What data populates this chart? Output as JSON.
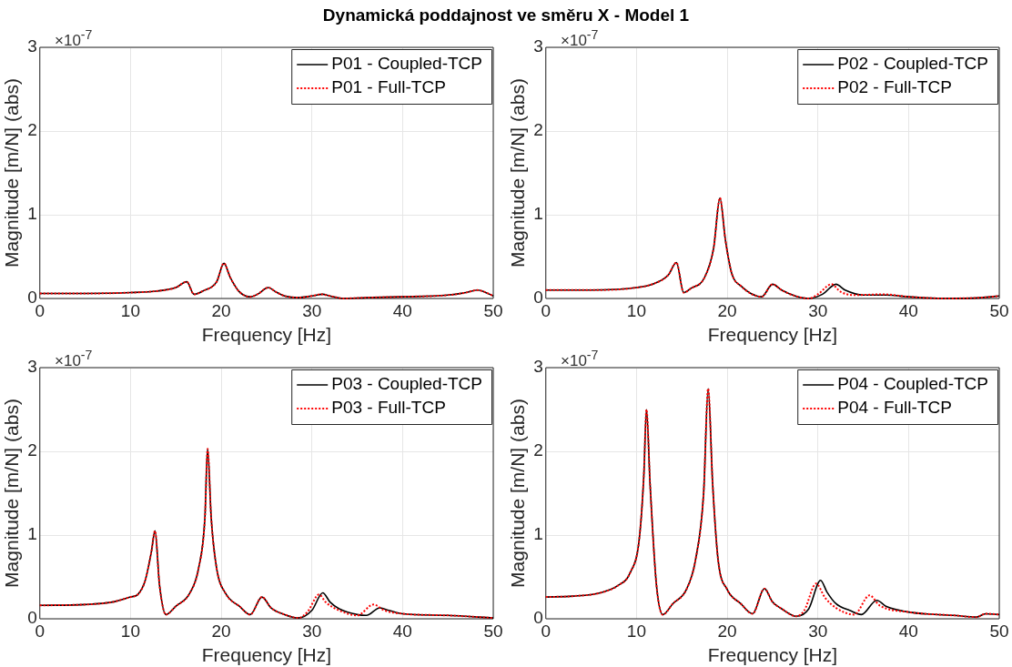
{
  "chart_data": [
    {
      "type": "line",
      "title": "Dynamická poddajnost ve směru X - Model 1",
      "xlabel": "Frequency [Hz]",
      "ylabel": "Magnitude [m/N] (abs)",
      "annotations": [
        "×10$^{-7}$"
      ],
      "xlim": [
        0,
        50
      ],
      "xticks": [
        0,
        10,
        20,
        30,
        40,
        50
      ],
      "ylim": [
        0,
        3
      ],
      "yticks": [
        0,
        1,
        2,
        3
      ],
      "grid": true,
      "legend": "top right",
      "series": [
        {
          "name": "P01 - Coupled-TCP",
          "color": "#000000",
          "line_style": "solid",
          "x": [
            0,
            5,
            10,
            13,
            15,
            16.2,
            17,
            18,
            19.5,
            20.3,
            21,
            22,
            23.2,
            24,
            25.2,
            26,
            27,
            28.5,
            30,
            31.2,
            32,
            33.5,
            36,
            40,
            45,
            47,
            48.3,
            49,
            50
          ],
          "values": [
            0.06,
            0.06,
            0.07,
            0.09,
            0.13,
            0.2,
            0.05,
            0.09,
            0.2,
            0.42,
            0.25,
            0.08,
            0.02,
            0.05,
            0.13,
            0.08,
            0.03,
            0.01,
            0.03,
            0.05,
            0.03,
            0.0,
            0.01,
            0.02,
            0.04,
            0.07,
            0.1,
            0.08,
            0.03
          ]
        },
        {
          "name": "P01 - Full-TCP",
          "color": "#ff0000",
          "line_style": "dotted",
          "x": [
            0,
            5,
            10,
            13,
            15,
            16.2,
            17,
            18,
            19.5,
            20.3,
            21,
            22,
            23.2,
            24,
            25.2,
            26,
            27,
            28.5,
            30,
            31,
            32,
            33.5,
            36,
            40,
            45,
            47,
            48.2,
            49,
            50
          ],
          "values": [
            0.06,
            0.06,
            0.07,
            0.09,
            0.13,
            0.2,
            0.05,
            0.09,
            0.2,
            0.42,
            0.25,
            0.08,
            0.02,
            0.05,
            0.13,
            0.08,
            0.03,
            0.01,
            0.03,
            0.05,
            0.03,
            0.0,
            0.01,
            0.02,
            0.04,
            0.07,
            0.1,
            0.08,
            0.03
          ]
        }
      ]
    },
    {
      "type": "line",
      "xlabel": "Frequency [Hz]",
      "ylabel": "Magnitude [m/N] (abs)",
      "annotations": [
        "×10$^{-7}$"
      ],
      "xlim": [
        0,
        50
      ],
      "xticks": [
        0,
        10,
        20,
        30,
        40,
        50
      ],
      "ylim": [
        0,
        3
      ],
      "yticks": [
        0,
        1,
        2,
        3
      ],
      "grid": true,
      "legend": "top right",
      "series": [
        {
          "name": "P02 - Coupled-TCP",
          "color": "#000000",
          "line_style": "solid",
          "x": [
            0,
            5,
            10,
            12,
            13.5,
            14.4,
            15.2,
            16,
            17.5,
            18.5,
            19.2,
            19.8,
            20.5,
            21.5,
            23.8,
            25,
            26,
            27.5,
            29,
            30.5,
            32,
            33,
            35,
            37.5,
            40,
            44,
            48,
            50
          ],
          "values": [
            0.1,
            0.1,
            0.13,
            0.18,
            0.28,
            0.43,
            0.07,
            0.12,
            0.25,
            0.6,
            1.2,
            0.7,
            0.3,
            0.15,
            0.02,
            0.17,
            0.1,
            0.03,
            0.0,
            0.05,
            0.17,
            0.1,
            0.04,
            0.04,
            0.02,
            0.0,
            0.01,
            0.03
          ]
        },
        {
          "name": "P02 - Full-TCP",
          "color": "#ff0000",
          "line_style": "dotted",
          "x": [
            0,
            5,
            10,
            12,
            13.5,
            14.4,
            15.2,
            16,
            17.5,
            18.5,
            19.2,
            19.8,
            20.5,
            21.5,
            23.8,
            25,
            26,
            27.5,
            29,
            30,
            31.5,
            32.5,
            34,
            37.2,
            40,
            44,
            48,
            50
          ],
          "values": [
            0.1,
            0.1,
            0.13,
            0.18,
            0.28,
            0.43,
            0.07,
            0.12,
            0.25,
            0.6,
            1.2,
            0.7,
            0.3,
            0.15,
            0.02,
            0.17,
            0.1,
            0.03,
            0.0,
            0.05,
            0.17,
            0.08,
            0.04,
            0.05,
            0.02,
            0.0,
            0.01,
            0.03
          ]
        }
      ]
    },
    {
      "type": "line",
      "xlabel": "Frequency [Hz]",
      "ylabel": "Magnitude [m/N] (abs)",
      "annotations": [
        "×10$^{-7}$"
      ],
      "xlim": [
        0,
        50
      ],
      "xticks": [
        0,
        10,
        20,
        30,
        40,
        50
      ],
      "ylim": [
        0,
        3
      ],
      "yticks": [
        0,
        1,
        2,
        3
      ],
      "grid": true,
      "legend": "top right",
      "series": [
        {
          "name": "P03 - Coupled-TCP",
          "color": "#000000",
          "line_style": "solid",
          "x": [
            0,
            5,
            8,
            10,
            10.8,
            11.6,
            12.3,
            12.7,
            13.2,
            13.9,
            15,
            16.5,
            17.5,
            18.2,
            18.5,
            18.9,
            19.5,
            20.5,
            22,
            23.2,
            24.5,
            25.5,
            27,
            28.5,
            30,
            31.2,
            32,
            33,
            35,
            36,
            37.5,
            38.5,
            40,
            45,
            50
          ],
          "values": [
            0.16,
            0.17,
            0.2,
            0.26,
            0.29,
            0.45,
            0.8,
            1.05,
            0.4,
            0.05,
            0.15,
            0.3,
            0.6,
            1.2,
            2.03,
            1.2,
            0.6,
            0.3,
            0.15,
            0.05,
            0.26,
            0.13,
            0.05,
            0.01,
            0.1,
            0.31,
            0.2,
            0.12,
            0.05,
            0.04,
            0.13,
            0.1,
            0.06,
            0.04,
            0.01
          ]
        },
        {
          "name": "P03 - Full-TCP",
          "color": "#ff0000",
          "line_style": "dotted",
          "x": [
            0,
            5,
            8,
            10,
            10.8,
            11.6,
            12.3,
            12.7,
            13.2,
            13.9,
            15,
            16.5,
            17.5,
            18.2,
            18.5,
            18.9,
            19.5,
            20.5,
            22,
            23.2,
            24.5,
            25.5,
            27,
            28.5,
            29.5,
            30.8,
            31.5,
            33,
            35,
            36.8,
            38,
            40,
            45,
            50
          ],
          "values": [
            0.16,
            0.17,
            0.2,
            0.26,
            0.29,
            0.45,
            0.8,
            1.05,
            0.4,
            0.05,
            0.15,
            0.3,
            0.6,
            1.2,
            2.03,
            1.2,
            0.6,
            0.3,
            0.15,
            0.05,
            0.26,
            0.13,
            0.05,
            0.01,
            0.08,
            0.29,
            0.2,
            0.1,
            0.04,
            0.17,
            0.1,
            0.06,
            0.04,
            0.01
          ]
        }
      ]
    },
    {
      "type": "line",
      "xlabel": "Frequency [Hz]",
      "ylabel": "Magnitude [m/N] (abs)",
      "annotations": [
        "×10$^{-7}$"
      ],
      "xlim": [
        0,
        50
      ],
      "xticks": [
        0,
        10,
        20,
        30,
        40,
        50
      ],
      "ylim": [
        0,
        3
      ],
      "yticks": [
        0,
        1,
        2,
        3
      ],
      "grid": true,
      "legend": "top right",
      "series": [
        {
          "name": "P04 - Coupled-TCP",
          "color": "#000000",
          "line_style": "solid",
          "x": [
            0,
            3,
            6,
            8,
            9.3,
            10.3,
            10.8,
            11.1,
            11.5,
            12.2,
            12.9,
            14,
            15.5,
            16.5,
            17.4,
            17.9,
            18.4,
            19,
            20,
            21.5,
            22.8,
            24.1,
            25,
            26,
            27.6,
            29,
            30.3,
            31,
            32,
            33.5,
            34.8,
            36.5,
            37.5,
            40,
            45,
            47.5,
            48.5,
            50
          ],
          "values": [
            0.26,
            0.27,
            0.31,
            0.4,
            0.55,
            0.95,
            1.7,
            2.5,
            1.6,
            0.4,
            0.05,
            0.18,
            0.35,
            0.7,
            1.5,
            2.75,
            1.6,
            0.7,
            0.35,
            0.18,
            0.06,
            0.36,
            0.2,
            0.12,
            0.03,
            0.12,
            0.46,
            0.32,
            0.18,
            0.1,
            0.05,
            0.22,
            0.15,
            0.08,
            0.04,
            0.02,
            0.06,
            0.05
          ]
        },
        {
          "name": "P04 - Full-TCP",
          "color": "#ff0000",
          "line_style": "dotted",
          "x": [
            0,
            3,
            6,
            8,
            9.3,
            10.3,
            10.8,
            11.1,
            11.5,
            12.2,
            12.9,
            14,
            15.5,
            16.5,
            17.4,
            17.9,
            18.4,
            19,
            20,
            21.5,
            22.8,
            24.1,
            25,
            26,
            27.6,
            28.5,
            29.8,
            30.8,
            32,
            34,
            35.7,
            36.8,
            40,
            45,
            47.5,
            48.5,
            50
          ],
          "values": [
            0.26,
            0.27,
            0.31,
            0.4,
            0.55,
            0.95,
            1.7,
            2.5,
            1.6,
            0.4,
            0.05,
            0.18,
            0.35,
            0.7,
            1.5,
            2.75,
            1.6,
            0.7,
            0.35,
            0.18,
            0.06,
            0.36,
            0.2,
            0.12,
            0.03,
            0.1,
            0.42,
            0.25,
            0.13,
            0.05,
            0.28,
            0.16,
            0.08,
            0.04,
            0.02,
            0.06,
            0.05
          ]
        }
      ]
    }
  ]
}
